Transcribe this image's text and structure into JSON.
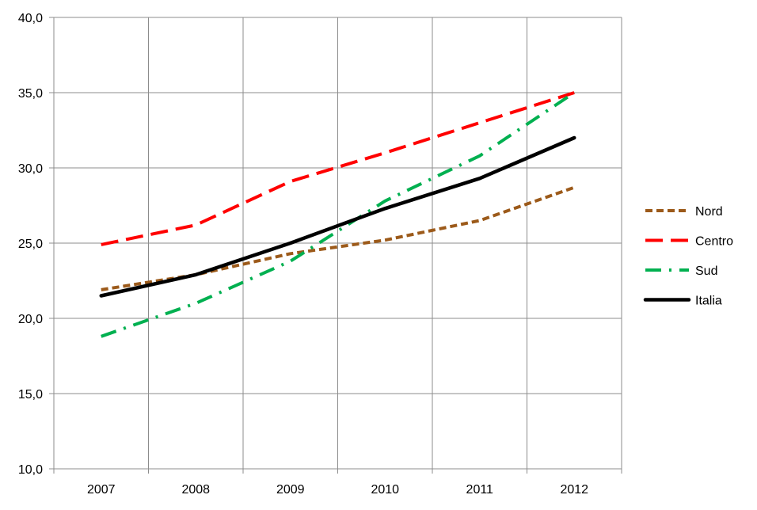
{
  "chart_data": {
    "type": "line",
    "x": [
      "2007",
      "2008",
      "2009",
      "2010",
      "2011",
      "2012"
    ],
    "ylim": [
      10,
      40
    ],
    "yticks": [
      10,
      15,
      20,
      25,
      30,
      35,
      40
    ],
    "ytick_labels": [
      "10,0",
      "15,0",
      "20,0",
      "25,0",
      "30,0",
      "35,0",
      "40,0"
    ],
    "grid": true,
    "legend_position": "right",
    "series": [
      {
        "name": "Nord",
        "values": [
          21.9,
          22.9,
          24.3,
          25.2,
          26.5,
          28.7
        ],
        "color": "#9C5A1A",
        "style": "short-dash"
      },
      {
        "name": "Centro",
        "values": [
          24.9,
          26.2,
          29.1,
          31.0,
          33.0,
          35.0
        ],
        "color": "#FF0000",
        "style": "long-dash"
      },
      {
        "name": "Sud",
        "values": [
          18.8,
          21.0,
          23.8,
          27.8,
          30.8,
          35.0
        ],
        "color": "#00B050",
        "style": "dash-dot"
      },
      {
        "name": "Italia",
        "values": [
          21.5,
          22.9,
          25.0,
          27.3,
          29.3,
          32.0
        ],
        "color": "#000000",
        "style": "solid"
      }
    ]
  }
}
